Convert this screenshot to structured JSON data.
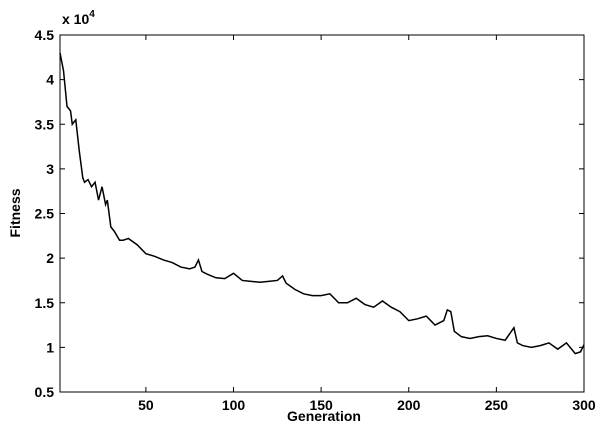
{
  "chart_data": {
    "type": "line",
    "x_label": "Generation",
    "y_label": "Fitness",
    "y_multiplier": {
      "base": "x 10",
      "exponent": "4"
    },
    "x": [
      1,
      3,
      5,
      7,
      8,
      10,
      12,
      14,
      15,
      17,
      19,
      21,
      23,
      25,
      27,
      28,
      30,
      32,
      35,
      37,
      40,
      45,
      50,
      55,
      60,
      65,
      70,
      75,
      78,
      80,
      82,
      85,
      90,
      95,
      100,
      105,
      110,
      115,
      120,
      125,
      128,
      130,
      135,
      140,
      145,
      150,
      155,
      160,
      165,
      170,
      175,
      180,
      185,
      190,
      195,
      200,
      205,
      210,
      215,
      220,
      222,
      224,
      226,
      230,
      235,
      240,
      245,
      250,
      255,
      260,
      262,
      265,
      270,
      275,
      280,
      285,
      290,
      295,
      298,
      300
    ],
    "series": [
      {
        "name": "Fitness",
        "color": "#000000",
        "values": [
          4.3,
          4.1,
          3.7,
          3.65,
          3.5,
          3.55,
          3.2,
          2.9,
          2.85,
          2.88,
          2.8,
          2.85,
          2.65,
          2.8,
          2.6,
          2.65,
          2.35,
          2.3,
          2.2,
          2.2,
          2.22,
          2.15,
          2.05,
          2.02,
          1.98,
          1.95,
          1.9,
          1.88,
          1.9,
          1.98,
          1.85,
          1.82,
          1.78,
          1.77,
          1.83,
          1.75,
          1.74,
          1.73,
          1.74,
          1.75,
          1.8,
          1.72,
          1.65,
          1.6,
          1.58,
          1.58,
          1.6,
          1.5,
          1.5,
          1.55,
          1.48,
          1.45,
          1.52,
          1.45,
          1.4,
          1.3,
          1.32,
          1.35,
          1.25,
          1.3,
          1.42,
          1.4,
          1.18,
          1.12,
          1.1,
          1.12,
          1.13,
          1.1,
          1.08,
          1.22,
          1.05,
          1.02,
          1.0,
          1.02,
          1.05,
          0.98,
          1.05,
          0.93,
          0.95,
          1.03
        ]
      }
    ],
    "xlim": [
      1,
      300
    ],
    "xticks": [
      50,
      100,
      150,
      200,
      250,
      300
    ],
    "ylim": [
      0.5,
      4.5
    ],
    "yticks": [
      0.5,
      1,
      1.5,
      2,
      2.5,
      3,
      3.5,
      4,
      4.5
    ]
  }
}
